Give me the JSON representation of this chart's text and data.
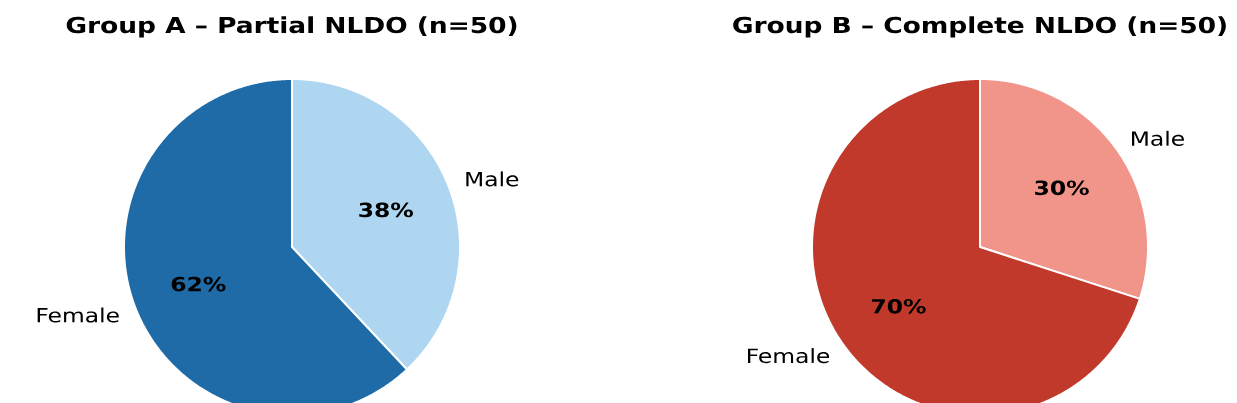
{
  "chart_data": [
    {
      "type": "pie",
      "title": "Group A – Partial NLDO (n=50)",
      "categories": [
        "Male",
        "Female"
      ],
      "values": [
        38,
        62
      ],
      "colors": [
        "#aed6f1",
        "#1e6ba8"
      ],
      "value_labels": [
        "38%",
        "62%"
      ]
    },
    {
      "type": "pie",
      "title": "Group B – Complete NLDO (n=50)",
      "categories": [
        "Male",
        "Female"
      ],
      "values": [
        30,
        70
      ],
      "colors": [
        "#f1948a",
        "#c0392b"
      ],
      "value_labels": [
        "30%",
        "70%"
      ]
    }
  ]
}
